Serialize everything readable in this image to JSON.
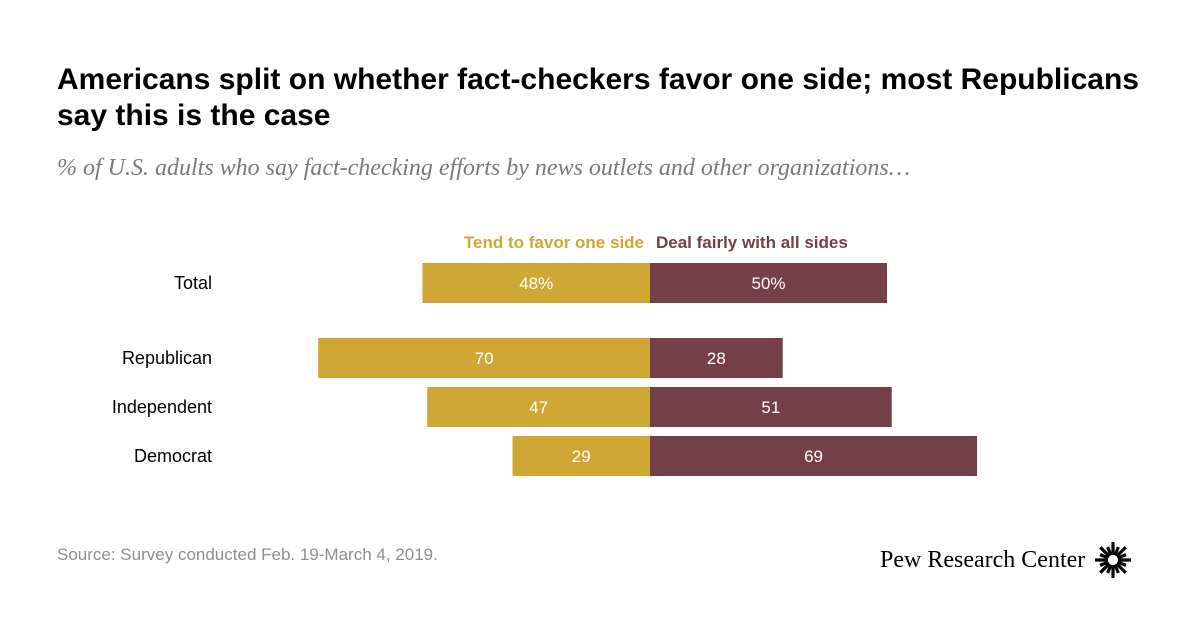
{
  "title": "Americans split on whether fact-checkers favor one side; most Republicans say this is the case",
  "subtitle": "% of U.S. adults who say fact-checking efforts by news outlets and other organizations…",
  "source": "Source: Survey conducted Feb. 19-March 4, 2019.",
  "brand": "Pew Research Center",
  "colors": {
    "favor": "#cfa734",
    "fair": "#743f49",
    "label_text": "#ffffff"
  },
  "chart_data": {
    "type": "bar",
    "orientation": "horizontal-diverging",
    "legend_placement": "top",
    "categories": [
      "Total",
      "Republican",
      "Independent",
      "Democrat"
    ],
    "series": [
      {
        "name": "Tend to favor one side",
        "values": [
          48,
          70,
          47,
          29
        ],
        "labels": [
          "48%",
          "70",
          "47",
          "29"
        ],
        "color": "#cfa734",
        "direction": "left"
      },
      {
        "name": "Deal fairly with all sides",
        "values": [
          50,
          28,
          51,
          69
        ],
        "labels": [
          "50%",
          "28",
          "51",
          "69"
        ],
        "color": "#743f49",
        "direction": "right"
      }
    ],
    "xlim": [
      0,
      100
    ],
    "grid": false
  }
}
